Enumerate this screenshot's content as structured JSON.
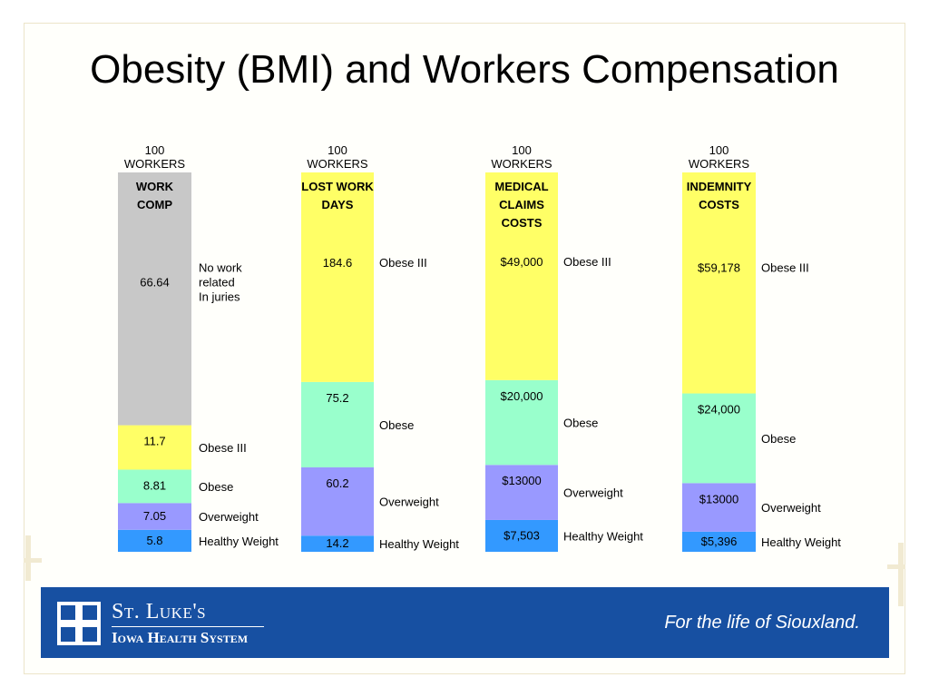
{
  "title": "Obesity (BMI) and Workers Compensation",
  "footer": {
    "org_name": "St. Luke's",
    "org_system": "Iowa Health System",
    "tagline": "For the life of Siouxland."
  },
  "colors": {
    "gray": "#c8c8c8",
    "yellow": "#ffff66",
    "mint": "#99ffcc",
    "lavender": "#9999ff",
    "blue": "#3399ff",
    "footer_blue": "#1750a2"
  },
  "chart_data": [
    {
      "type": "bar",
      "stacked": true,
      "header": [
        "100",
        "WORKERS"
      ],
      "bar_title": [
        "WORK",
        "COMP"
      ],
      "segments": [
        {
          "label": "Healthy Weight",
          "value_label": "5.8",
          "value": 5.8,
          "color": "#3399ff"
        },
        {
          "label": "Overweight",
          "value_label": "7.05",
          "value": 7.05,
          "color": "#9999ff"
        },
        {
          "label": "Obese",
          "value_label": "8.81",
          "value": 8.81,
          "color": "#99ffcc"
        },
        {
          "label": "Obese III",
          "value_label": "11.7",
          "value": 11.7,
          "color": "#ffff66"
        },
        {
          "label": [
            "No work",
            "related",
            "In juries"
          ],
          "value_label": "66.64",
          "value": 66.64,
          "color": "#c8c8c8"
        }
      ]
    },
    {
      "type": "bar",
      "stacked": true,
      "header": [
        "100",
        "WORKERS"
      ],
      "bar_title": [
        "LOST WORK",
        "DAYS"
      ],
      "segments": [
        {
          "label": "Healthy Weight",
          "value_label": "14.2",
          "value": 14.2,
          "color": "#3399ff"
        },
        {
          "label": "Overweight",
          "value_label": "60.2",
          "value": 60.2,
          "color": "#9999ff"
        },
        {
          "label": "Obese",
          "value_label": "75.2",
          "value": 75.2,
          "color": "#99ffcc"
        },
        {
          "label": "Obese III",
          "value_label": "184.6",
          "value": 184.6,
          "color": "#ffff66"
        }
      ]
    },
    {
      "type": "bar",
      "stacked": true,
      "header": [
        "100",
        "WORKERS"
      ],
      "bar_title": [
        "MEDICAL",
        "CLAIMS",
        "COSTS"
      ],
      "segments": [
        {
          "label": "Healthy Weight",
          "value_label": "$7,503",
          "value": 7503,
          "color": "#3399ff"
        },
        {
          "label": "Overweight",
          "value_label": "$13000",
          "value": 13000,
          "color": "#9999ff"
        },
        {
          "label": "Obese",
          "value_label": "$20,000",
          "value": 20000,
          "color": "#99ffcc"
        },
        {
          "label": "Obese III",
          "value_label": "$49,000",
          "value": 49000,
          "color": "#ffff66"
        }
      ]
    },
    {
      "type": "bar",
      "stacked": true,
      "header": [
        "100",
        "WORKERS"
      ],
      "bar_title": [
        "INDEMNITY",
        "COSTS"
      ],
      "segments": [
        {
          "label": "Healthy Weight",
          "value_label": "$5,396",
          "value": 5396,
          "color": "#3399ff"
        },
        {
          "label": "Overweight",
          "value_label": "$13000",
          "value": 13000,
          "color": "#9999ff"
        },
        {
          "label": "Obese",
          "value_label": "$24,000",
          "value": 24000,
          "color": "#99ffcc"
        },
        {
          "label": "Obese III",
          "value_label": "$59,178",
          "value": 59178,
          "color": "#ffff66"
        }
      ]
    }
  ]
}
